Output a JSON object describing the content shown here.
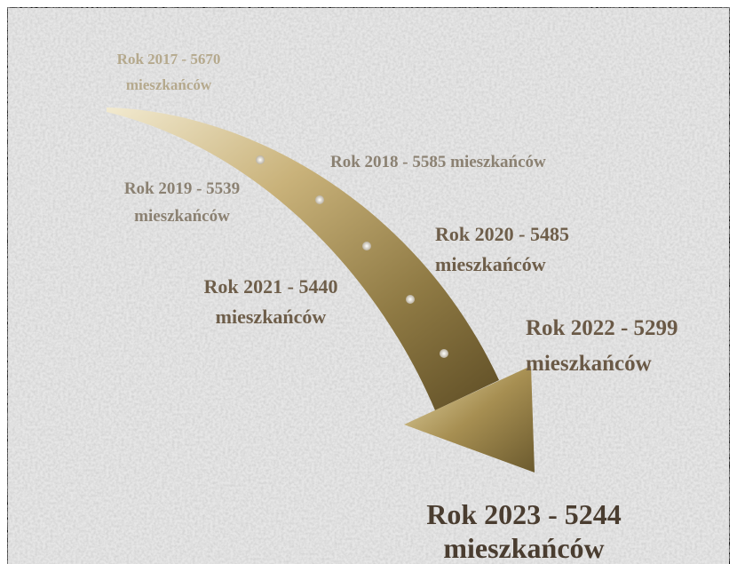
{
  "labels": [
    {
      "lines": [
        "Rok 2017 - 5670",
        "mieszkańców"
      ]
    },
    {
      "lines": [
        "Rok 2018 - 5585 mieszkańców"
      ]
    },
    {
      "lines": [
        "Rok 2019 - 5539",
        "mieszkańców"
      ]
    },
    {
      "lines": [
        "Rok 2020 - 5485",
        "mieszkańców"
      ]
    },
    {
      "lines": [
        "Rok 2021 - 5440",
        "mieszkańców"
      ]
    },
    {
      "lines": [
        "Rok 2022 - 5299",
        "mieszkańców"
      ]
    },
    {
      "lines": [
        "Rok 2023 - 5244",
        "mieszkańców"
      ]
    }
  ]
}
